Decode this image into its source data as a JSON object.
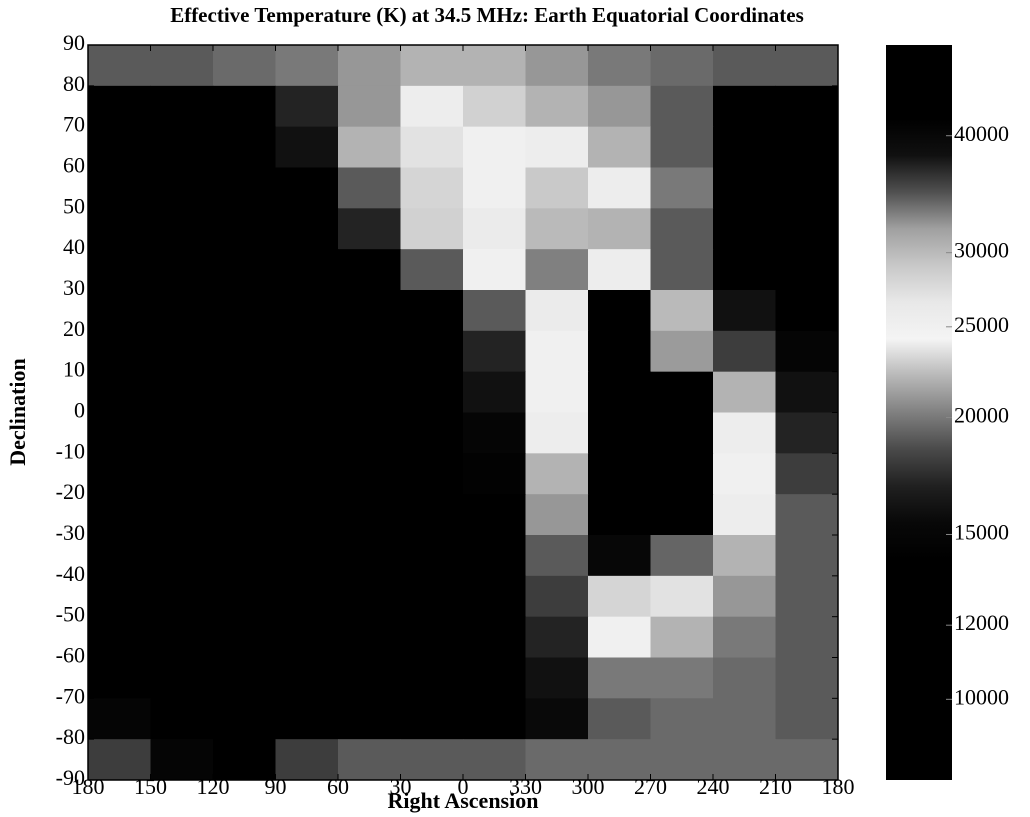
{
  "chart_data": {
    "type": "heatmap",
    "title": "Effective Temperature (K) at 34.5 MHz: Earth Equatorial Coordinates",
    "xlabel": "Right Ascension",
    "ylabel": "Declination",
    "xlim": [
      180,
      -180
    ],
    "ylim": [
      -90,
      90
    ],
    "xticks": [
      180,
      150,
      120,
      90,
      60,
      30,
      0,
      {
        "value": -30,
        "label": "330"
      },
      {
        "value": -60,
        "label": "300"
      },
      {
        "value": -90,
        "label": "270"
      },
      {
        "value": -120,
        "label": "240"
      },
      {
        "value": -150,
        "label": "210"
      },
      {
        "value": -180,
        "label": "180"
      }
    ],
    "yticks": [
      90,
      80,
      70,
      60,
      50,
      40,
      30,
      20,
      10,
      0,
      -10,
      -20,
      -30,
      -40,
      -50,
      -60,
      -70,
      -80,
      -90
    ],
    "x": [
      165,
      135,
      105,
      75,
      45,
      15,
      -15,
      -45,
      -75,
      -105,
      -135,
      -165
    ],
    "y": [
      85,
      75,
      65,
      55,
      45,
      35,
      25,
      15,
      5,
      -5,
      -15,
      -25,
      -35,
      -45,
      -55,
      -65,
      -75,
      -85
    ],
    "values": [
      [
        19000,
        19000,
        19500,
        20000,
        21000,
        22000,
        22000,
        21000,
        20000,
        19500,
        19000,
        19000
      ],
      [
        13000,
        13000,
        14000,
        17000,
        21000,
        24000,
        23000,
        22000,
        21000,
        19000,
        13000,
        12500
      ],
      [
        12000,
        12000,
        13000,
        16000,
        22000,
        27000,
        25000,
        24000,
        22000,
        19000,
        13000,
        12000
      ],
      [
        11500,
        11500,
        12000,
        14000,
        19000,
        28000,
        25000,
        29000,
        24000,
        20000,
        13000,
        12000
      ],
      [
        11000,
        11000,
        11500,
        12500,
        17000,
        23000,
        26000,
        30000,
        22000,
        19000,
        13000,
        12000
      ],
      [
        11000,
        11000,
        11000,
        12000,
        14000,
        19000,
        25000,
        33000,
        24000,
        19000,
        14000,
        12500
      ],
      [
        11000,
        11000,
        11000,
        11000,
        12000,
        14000,
        19000,
        26000,
        43000,
        30000,
        16000,
        14000
      ],
      [
        11000,
        11000,
        11000,
        11000,
        11500,
        13000,
        17000,
        25000,
        45000,
        32000,
        18000,
        15000
      ],
      [
        11000,
        11000,
        11000,
        11000,
        11000,
        12500,
        16000,
        25000,
        46000,
        42000,
        22000,
        16000
      ],
      [
        11000,
        11000,
        11000,
        11000,
        11000,
        12000,
        15000,
        24000,
        46000,
        43000,
        24000,
        17000
      ],
      [
        11000,
        11000,
        11000,
        11000,
        11000,
        12000,
        14500,
        22000,
        45000,
        43000,
        25000,
        18000
      ],
      [
        11000,
        11000,
        11000,
        11000,
        11000,
        12000,
        14000,
        21000,
        44000,
        42000,
        24000,
        19000
      ],
      [
        11000,
        11000,
        11000,
        11000,
        11000,
        12000,
        14000,
        19000,
        40000,
        34000,
        22000,
        19000
      ],
      [
        11000,
        11000,
        11000,
        11000,
        11000,
        12000,
        13500,
        18000,
        28000,
        27000,
        21000,
        19000
      ],
      [
        11500,
        11000,
        11000,
        11000,
        11000,
        12000,
        13500,
        17000,
        25000,
        22000,
        20000,
        19000
      ],
      [
        13000,
        12000,
        11500,
        11000,
        11000,
        11500,
        13000,
        16000,
        20000,
        20000,
        19500,
        19000
      ],
      [
        15000,
        13000,
        12000,
        11500,
        11000,
        11500,
        13000,
        15500,
        19000,
        19500,
        19500,
        19000
      ],
      [
        18000,
        15000,
        13000,
        18000,
        19000,
        19000,
        19000,
        19500,
        19500,
        19500,
        19500,
        19500
      ]
    ],
    "colorbar": {
      "log": true,
      "lim": [
        8200,
        50000
      ],
      "ticks": [
        10000,
        12000,
        15000,
        20000,
        25000,
        30000,
        40000
      ]
    },
    "colormap": [
      "#000000",
      "#000000",
      "#000000",
      "#000000",
      "#000000",
      "#000000",
      "#000000",
      "#080808",
      "#202020",
      "#4a4a4a",
      "#808080",
      "#b8b8b8",
      "#f4f4f4",
      "#e8e8e8",
      "#c8c8c8",
      "#a0a0a0",
      "#505050",
      "#101010",
      "#000000",
      "#000000",
      "#000000"
    ]
  }
}
